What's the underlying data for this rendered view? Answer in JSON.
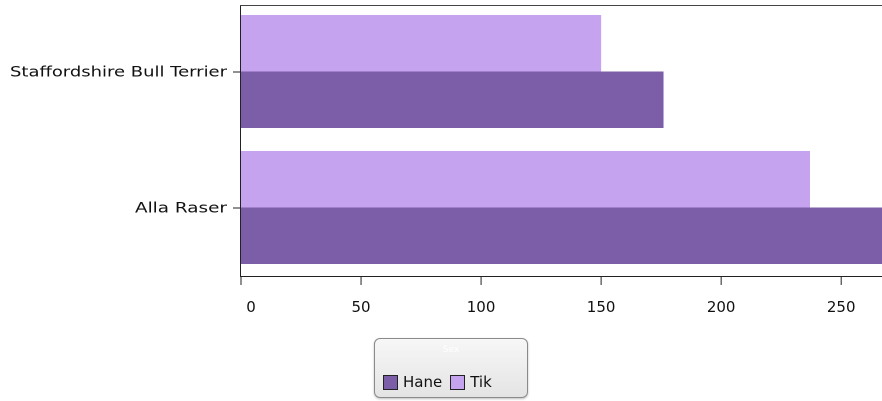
{
  "chart_data": {
    "type": "bar",
    "orientation": "horizontal",
    "categories": [
      "Staffordshire Bull Terrier",
      "Alla Raser"
    ],
    "series": [
      {
        "name": "Tik",
        "values": [
          150,
          237
        ],
        "color": "#c5a3ee"
      },
      {
        "name": "Hane",
        "values": [
          176,
          267
        ],
        "color": "#7c5ea8"
      }
    ],
    "xlim": [
      0,
      267
    ],
    "xticks": [
      0,
      50,
      100,
      150,
      200,
      250
    ],
    "grid": false,
    "legend": {
      "title": "Sex",
      "placement": "bottom-center",
      "order": [
        "Hane",
        "Tik"
      ]
    }
  }
}
